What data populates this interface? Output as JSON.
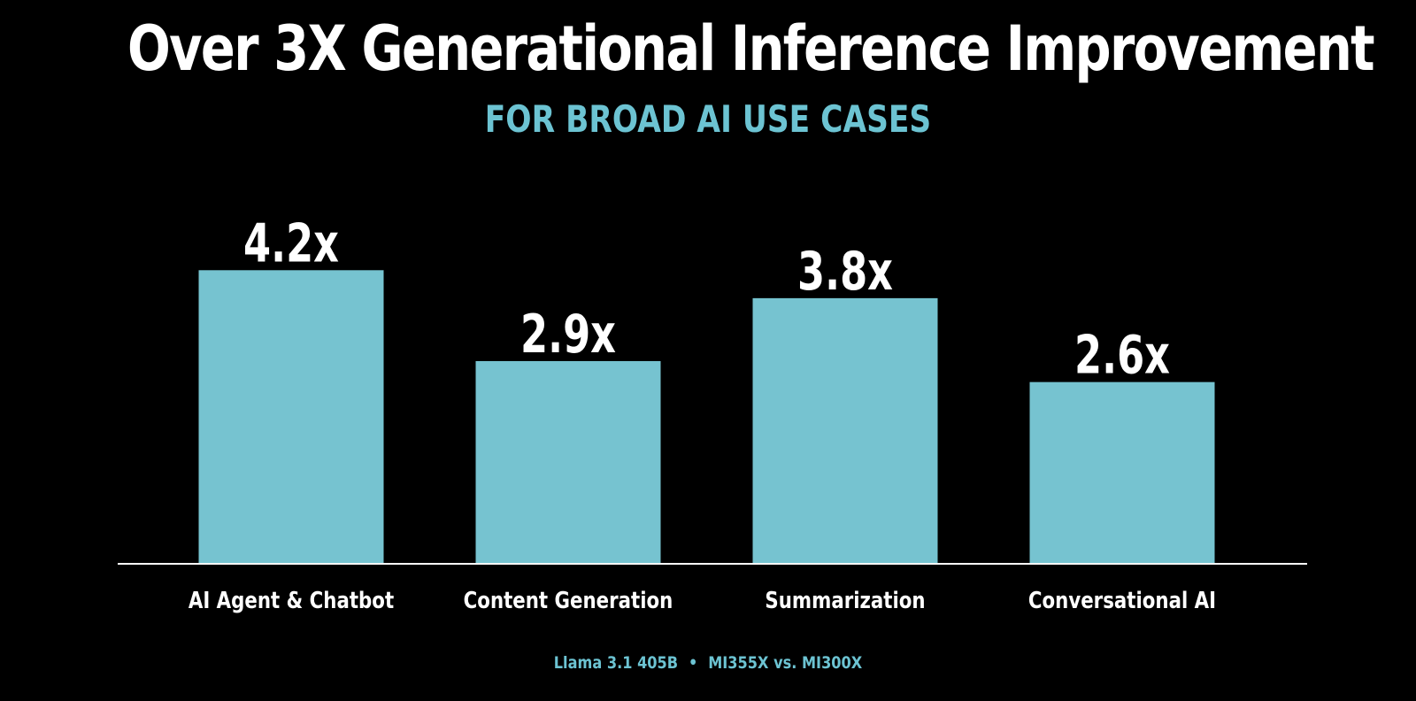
{
  "colors": {
    "background": "#000000",
    "bar": "#76c3d0",
    "accent": "#6cc3d2",
    "text": "#ffffff"
  },
  "chart_data": {
    "type": "bar",
    "title": "Over 3X Generational Inference Improvement",
    "subtitle": "FOR BROAD AI USE CASES",
    "categories": [
      "AI Agent & Chatbot",
      "Content Generation",
      "Summarization",
      "Conversational AI"
    ],
    "values": [
      4.2,
      2.9,
      3.8,
      2.6
    ],
    "data_labels": [
      "4.2x",
      "2.9x",
      "3.8x",
      "2.6x"
    ],
    "ylim": [
      0,
      4.9
    ],
    "grid": false,
    "legend": "none",
    "footnote": {
      "model": "Llama 3.1 405B",
      "separator": "•",
      "comparison": "MI355X vs. MI300X"
    }
  }
}
